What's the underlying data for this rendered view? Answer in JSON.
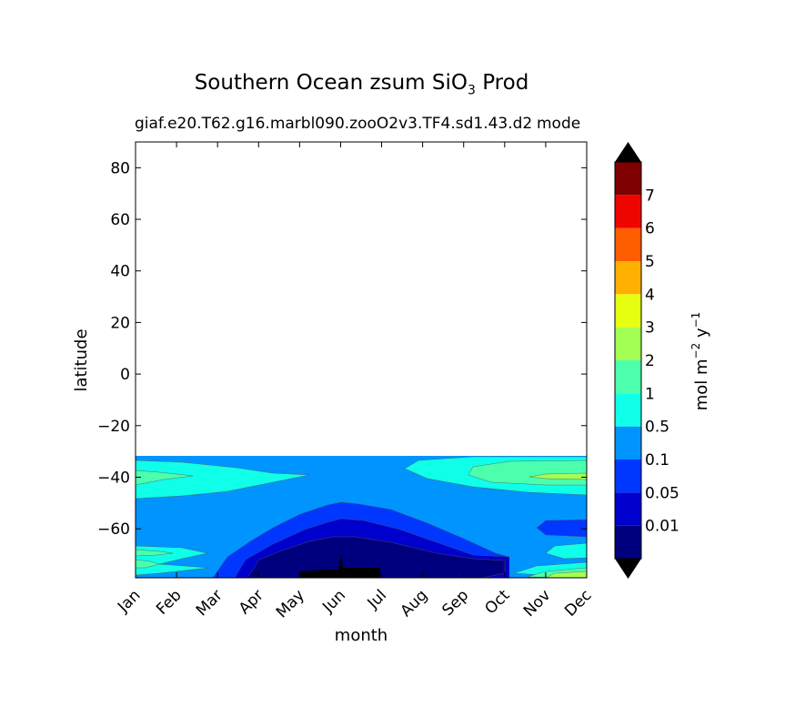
{
  "title_main": "Southern Ocean zsum SiO",
  "title_sub": "3",
  "title_tail": "Prod",
  "subtitle": "giaf.e20.T62.g16.marbl090.zooO2v3.TF4.sd1.43.d2",
  "subtitle_right": "mode",
  "colorbar_label": "mol m",
  "colorbar_label_exp1": "−2",
  "colorbar_label_unit2": " y",
  "colorbar_label_exp2": "−1",
  "colors": {
    "under": "#000000",
    "over": "#000000",
    "levels": [
      "#00007f",
      "#0000cd",
      "#0037ff",
      "#0094ff",
      "#0fffe8",
      "#4cffad",
      "#a3ff54",
      "#e6ff11",
      "#ffb000",
      "#ff5e00",
      "#ef0500",
      "#7f0000"
    ]
  },
  "chart_data": {
    "type": "heatmap",
    "title": "Southern Ocean zsum SiO3 Prod",
    "subtitle": "giaf.e20.T62.g16.marbl090.zooO2v3.TF4.sd1.43.d2",
    "xlabel": "month",
    "ylabel": "latitude",
    "x_categories": [
      "Jan",
      "Feb",
      "Mar",
      "Apr",
      "May",
      "Jun",
      "Jul",
      "Aug",
      "Sep",
      "Oct",
      "Nov",
      "Dec"
    ],
    "ylim": [
      -79,
      90
    ],
    "yticks": [
      80,
      60,
      40,
      20,
      0,
      -20,
      -40,
      -60
    ],
    "data_extent_lat": [
      -79,
      -31
    ],
    "colorbar": {
      "label": "mol m^-2 y^-1",
      "extend": "both",
      "tick_labels": [
        "0.01",
        "0.05",
        "0.1",
        "0.5",
        "1",
        "2",
        "3",
        "4",
        "5",
        "6",
        "7"
      ]
    },
    "contour_regions": [
      {
        "level": "0.1-0.5",
        "description": "background across -31 to -79 latitude"
      },
      {
        "level": "0.5-1",
        "months": [
          "Jan",
          "Feb",
          "Mar"
        ],
        "lat": [
          -33,
          -46
        ]
      },
      {
        "level": "0.5-1",
        "months": [
          "Sep",
          "Oct",
          "Nov",
          "Dec"
        ],
        "lat": [
          -33,
          -47
        ]
      },
      {
        "level": "1-2",
        "months": [
          "Oct",
          "Nov",
          "Dec"
        ],
        "lat": [
          -37,
          -44
        ]
      },
      {
        "level": "2-3",
        "months": [
          "Dec"
        ],
        "lat": [
          -40,
          -41
        ]
      },
      {
        "level": "0.05-0.1",
        "months": [
          "Apr",
          "May",
          "Jun",
          "Jul",
          "Aug",
          "Sep",
          "Oct"
        ],
        "lat": [
          -50,
          -79
        ]
      },
      {
        "level": "0.01-0.05",
        "months": [
          "May",
          "Jun",
          "Jul",
          "Aug",
          "Sep"
        ],
        "lat": [
          -55,
          -79
        ]
      },
      {
        "level": "<0.01",
        "months": [
          "May",
          "Jun",
          "Jul",
          "Aug",
          "Sep",
          "Oct"
        ],
        "lat": [
          -62,
          -79
        ]
      },
      {
        "level": "under",
        "months": [
          "May",
          "Jun",
          "Jul"
        ],
        "lat": [
          -76,
          -79
        ]
      }
    ]
  }
}
